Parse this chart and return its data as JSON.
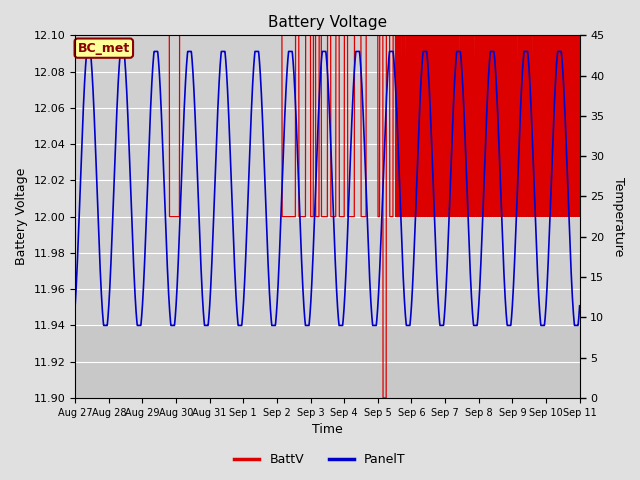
{
  "title": "Battery Voltage",
  "xlabel": "Time",
  "ylabel_left": "Battery Voltage",
  "ylabel_right": "Temperature",
  "ylim_left": [
    11.9,
    12.1
  ],
  "ylim_right": [
    0,
    45
  ],
  "fig_bg_color": "#e0e0e0",
  "plot_bg_color": "#d0d0d0",
  "shaded_bg_color": "#c8c8c8",
  "grid_color": "#ffffff",
  "annotation_label": "BC_met",
  "annotation_bg": "#ffff99",
  "annotation_border": "#8B0000",
  "batt_color": "#dd0000",
  "panel_color": "#0000cc",
  "left_ticks": [
    11.9,
    11.92,
    11.94,
    11.96,
    11.98,
    12.0,
    12.02,
    12.04,
    12.06,
    12.08,
    12.1
  ],
  "right_ticks": [
    0,
    5,
    10,
    15,
    20,
    25,
    30,
    35,
    40,
    45
  ],
  "xtick_labels": [
    "Aug 27",
    "Aug 28",
    "Aug 29",
    "Aug 30",
    "Aug 31",
    "Sep 1",
    "Sep 2",
    "Sep 3",
    "Sep 4",
    "Sep 5",
    "Sep 6",
    "Sep 7",
    "Sep 8",
    "Sep 9",
    "Sep 10",
    "Sep 11"
  ],
  "xlim": [
    0,
    15
  ]
}
